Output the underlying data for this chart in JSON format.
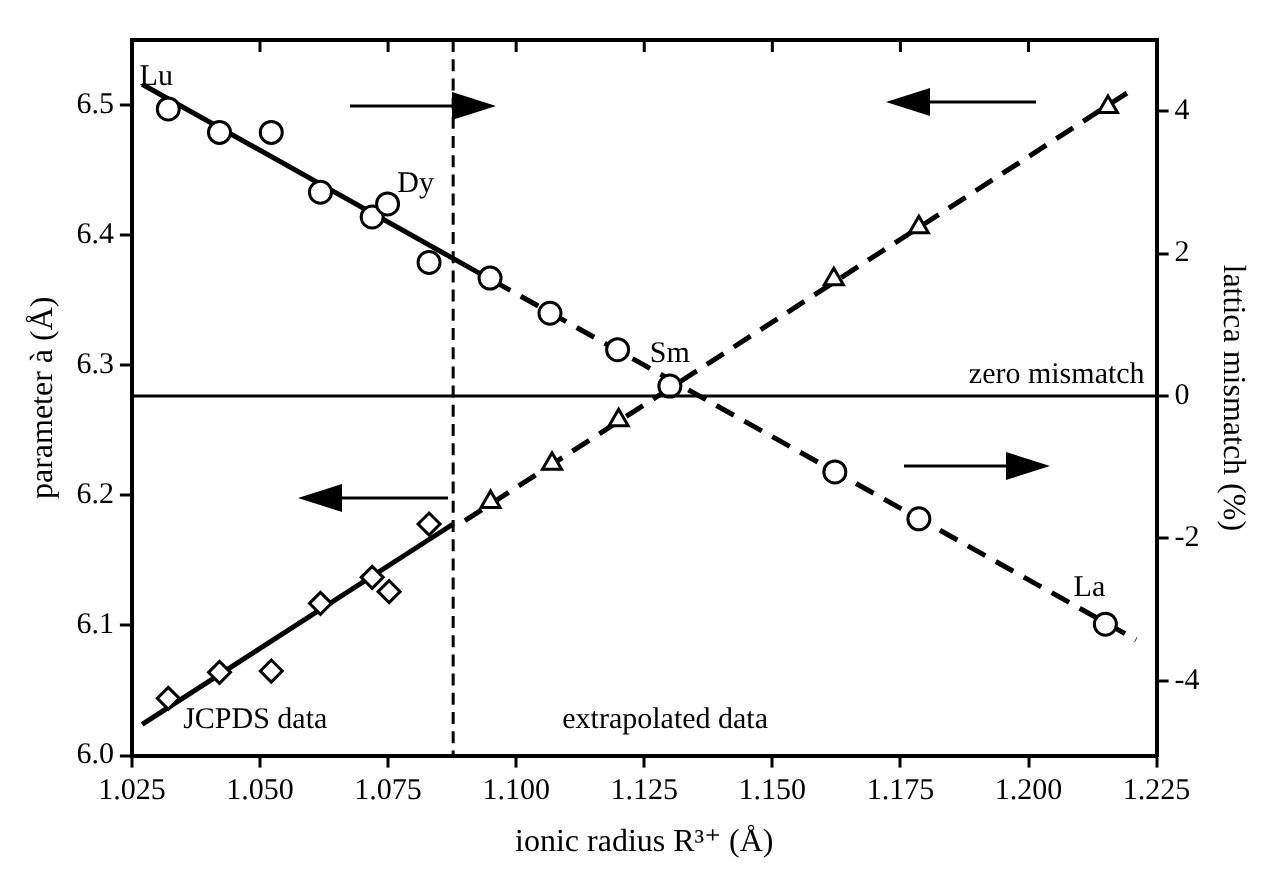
{
  "chart_data": {
    "type": "scatter",
    "xlabel": "ionic radius R³⁺ (Å)",
    "ylabel": "parameter à (Å)",
    "y2label": "lattica mismatch (%)",
    "xlim": [
      1.025,
      1.225
    ],
    "xticks": [
      {
        "value": 1.025,
        "label": "1.025"
      },
      {
        "value": 1.05,
        "label": "1.050"
      },
      {
        "value": 1.075,
        "label": "1.075"
      },
      {
        "value": 1.1,
        "label": "1.100"
      },
      {
        "value": 1.125,
        "label": "1.125"
      },
      {
        "value": 1.15,
        "label": "1.150"
      },
      {
        "value": 1.175,
        "label": "1.175"
      },
      {
        "value": 1.2,
        "label": "1.200"
      },
      {
        "value": 1.225,
        "label": "1.225"
      }
    ],
    "ylim": [
      6.0,
      6.55
    ],
    "yticks": [
      {
        "value": 6,
        "label": "6.0"
      },
      6.1,
      6.2,
      6.3,
      6.4,
      6.5
    ],
    "y2lim": [
      -5.05,
      5.0
    ],
    "y2ticks": [
      -4,
      -2,
      0,
      2,
      4
    ],
    "series": [
      {
        "type": "scatter",
        "marker": "circle",
        "color": "#000000",
        "x": [
          1.0321,
          1.0421,
          1.0522,
          1.0618,
          1.0719,
          1.0749,
          1.083,
          1.0949,
          1.1066,
          1.1198,
          1.13,
          1.1622,
          1.1786,
          1.215
        ],
        "values": [
          6.497,
          6.479,
          6.479,
          6.433,
          6.414,
          6.424,
          6.379,
          6.367,
          6.34,
          6.312,
          6.284,
          6.218,
          6.182,
          6.101
        ]
      },
      {
        "type": "line",
        "marker": "none",
        "line_style": "solid",
        "color": "#000000",
        "x": [
          1.027,
          1.09
        ],
        "values": [
          6.516,
          6.377
        ]
      },
      {
        "type": "line",
        "marker": "none",
        "line_style": "dashed",
        "color": "#000000",
        "x": [
          1.09,
          1.221
        ],
        "values": [
          6.377,
          6.089
        ]
      },
      {
        "type": "scatter",
        "marker": "diamond",
        "color": "#000000",
        "x": [
          1.0321,
          1.0421,
          1.0522,
          1.0618,
          1.0719,
          1.0752,
          1.083
        ],
        "values": [
          6.044,
          6.064,
          6.065,
          6.117,
          6.137,
          6.126,
          6.178
        ]
      },
      {
        "type": "line",
        "marker": "none",
        "line_style": "solid",
        "color": "#000000",
        "x": [
          1.027,
          1.0877
        ],
        "values": [
          6.024,
          6.178
        ]
      },
      {
        "type": "scatter",
        "marker": "triangle",
        "axis": "y2",
        "color": "#000000",
        "x": [
          1.095,
          1.107,
          1.12,
          1.162,
          1.1786,
          1.2155
        ],
        "values": [
          -1.49,
          -0.95,
          -0.34,
          1.64,
          2.37,
          4.06
        ]
      },
      {
        "type": "line",
        "marker": "none",
        "line_style": "dashed",
        "axis": "y2",
        "color": "#000000",
        "x": [
          1.09,
          1.2204
        ],
        "values": [
          -1.75,
          4.31
        ]
      }
    ],
    "ref_lines": [
      {
        "axis": "y2",
        "value": 0,
        "label": "zero mismatch",
        "color": "#000000",
        "line_style": "solid"
      },
      {
        "axis": "x",
        "value": 1.0877,
        "color": "#000000",
        "line_style": "dashed"
      }
    ],
    "annotations": [
      {
        "text": "Lu",
        "x": 1.0321,
        "y": 6.497
      },
      {
        "text": "Dy",
        "x": 1.0749,
        "y": 6.424
      },
      {
        "text": "Sm",
        "x": 1.13,
        "y": 6.284
      },
      {
        "text": "La",
        "x": 1.215,
        "y": 6.101
      },
      "JCPDS data",
      "extrapolated data"
    ],
    "grid": false,
    "legend": false
  }
}
